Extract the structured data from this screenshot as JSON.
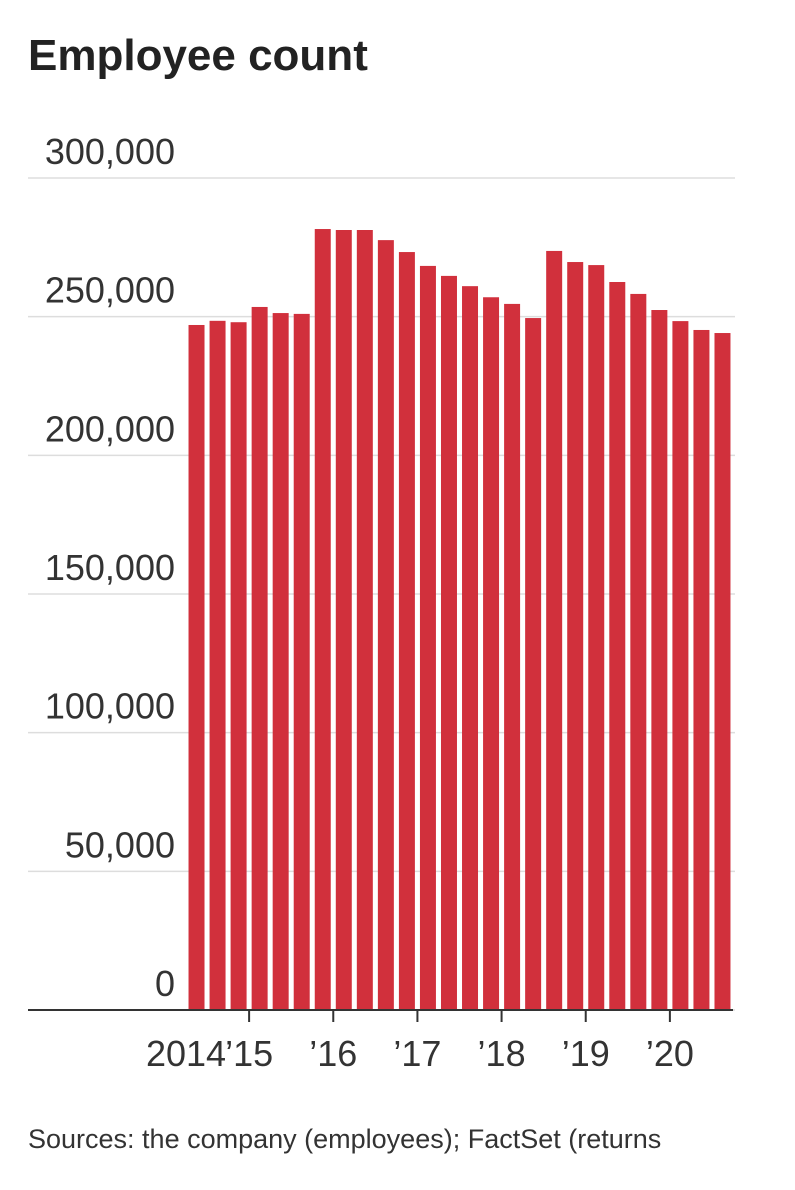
{
  "chart_data": {
    "type": "bar",
    "title": "Employee count",
    "categories": [
      "2014",
      null,
      null,
      "’15",
      null,
      null,
      null,
      "’16",
      null,
      null,
      null,
      "’17",
      null,
      null,
      null,
      "’18",
      null,
      null,
      null,
      "’19",
      null,
      null,
      null,
      "’20",
      null,
      null
    ],
    "values": [
      247000,
      248500,
      248000,
      253500,
      251300,
      251000,
      281600,
      281250,
      281250,
      277600,
      273300,
      268300,
      264700,
      261000,
      257000,
      254600,
      249500,
      273700,
      269700,
      268600,
      262500,
      258200,
      252400,
      248400,
      245200,
      244100
    ],
    "color": "#d1303c",
    "ylim": [
      0,
      300000
    ],
    "yticks": [
      {
        "value": 0,
        "label": "0"
      },
      {
        "value": 50000,
        "label": "50,000"
      },
      {
        "value": 100000,
        "label": "100,000"
      },
      {
        "value": 150000,
        "label": "150,000"
      },
      {
        "value": 200000,
        "label": "200,000"
      },
      {
        "value": 250000,
        "label": "250,000"
      },
      {
        "value": 300000,
        "label": "300,000"
      }
    ],
    "grid": true,
    "source": "Sources: the company (employees); FactSet (returns"
  }
}
